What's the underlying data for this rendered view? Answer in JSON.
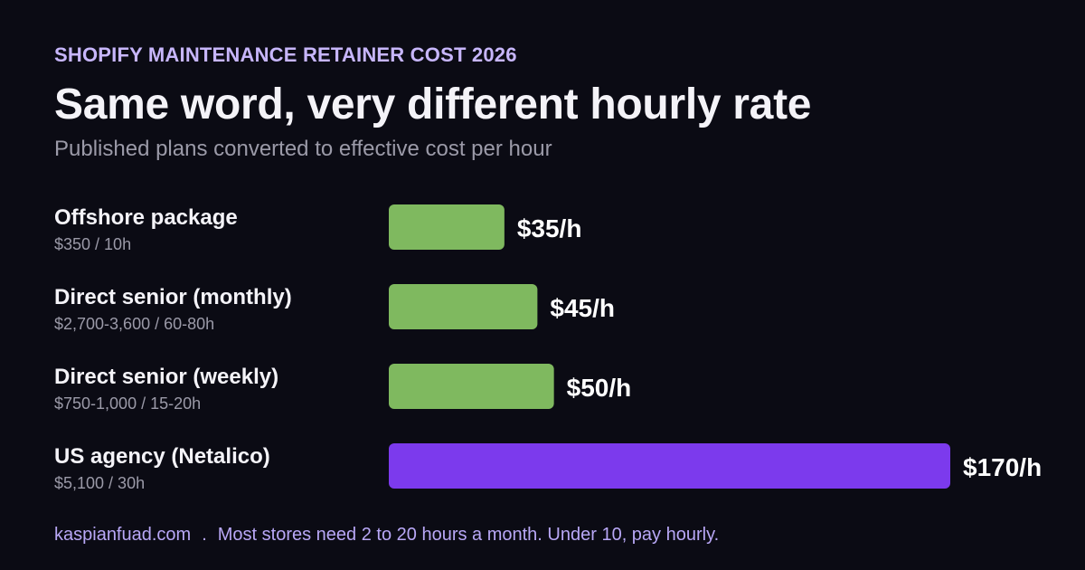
{
  "header": {
    "eyebrow": "SHOPIFY MAINTENANCE RETAINER COST 2026",
    "title": "Same word, very different hourly rate",
    "subtitle": "Published plans converted to effective cost per hour"
  },
  "footer": {
    "site": "kaspianfuad.com",
    "separator": ".",
    "note": "Most stores need 2 to 20 hours a month. Under 10, pay hourly."
  },
  "colors": {
    "green": "#7fb95f",
    "purple": "#7c3aed"
  },
  "chart_data": {
    "type": "bar",
    "orientation": "horizontal",
    "categories": [
      "Offshore package",
      "Direct senior (monthly)",
      "Direct senior (weekly)",
      "US agency (Netalico)"
    ],
    "details": [
      "$350 / 10h",
      "$2,700-3,600 / 60-80h",
      "$750-1,000 / 15-20h",
      "$5,100 / 30h"
    ],
    "values": [
      35,
      45,
      50,
      170
    ],
    "value_labels": [
      "$35/h",
      "$45/h",
      "$50/h",
      "$170/h"
    ],
    "bar_colors": [
      "#7fb95f",
      "#7fb95f",
      "#7fb95f",
      "#7c3aed"
    ],
    "xlim": [
      0,
      170
    ],
    "grid": false
  }
}
